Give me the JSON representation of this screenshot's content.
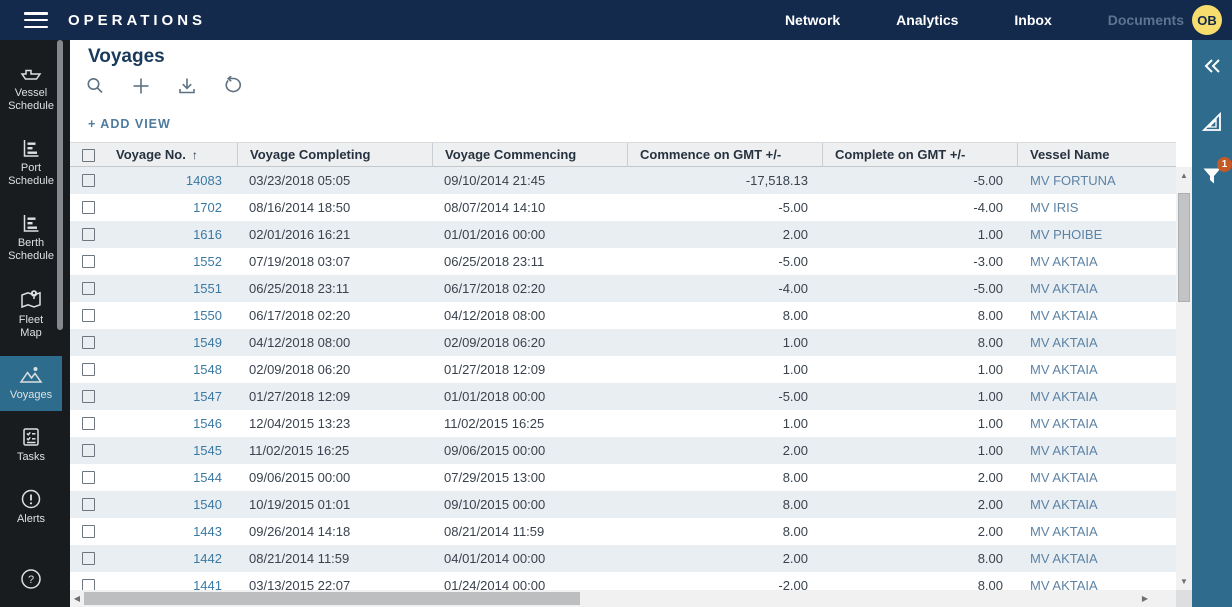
{
  "topbar": {
    "brand": "OPERATIONS",
    "nav_items": [
      {
        "label": "Network",
        "muted": false
      },
      {
        "label": "Analytics",
        "muted": false
      },
      {
        "label": "Inbox",
        "muted": false
      },
      {
        "label": "Documents",
        "muted": true
      }
    ],
    "avatar_initials": "OB"
  },
  "sidebar": {
    "items": [
      {
        "label": "Vessel\nSchedule",
        "icon": "ship-icon",
        "active": false
      },
      {
        "label": "Port\nSchedule",
        "icon": "gantt-icon",
        "active": false
      },
      {
        "label": "Berth\nSchedule",
        "icon": "gantt-icon",
        "active": false
      },
      {
        "label": "Fleet\nMap",
        "icon": "map-pin-icon",
        "active": false
      },
      {
        "label": "Voyages",
        "icon": "route-icon",
        "active": true
      },
      {
        "label": "Tasks",
        "icon": "checklist-icon",
        "active": false
      },
      {
        "label": "Alerts",
        "icon": "alert-icon",
        "active": false
      }
    ]
  },
  "main": {
    "title": "Voyages",
    "add_view_label": "+ ADD VIEW",
    "table": {
      "columns": [
        "Voyage No.",
        "Voyage Completing",
        "Voyage Commencing",
        "Commence on GMT +/-",
        "Complete on GMT +/-",
        "Vessel Name"
      ],
      "sort_column": "Voyage No.",
      "sort_arrow": "↑",
      "rows": [
        {
          "voyage_no": "14083",
          "completing": "03/23/2018 05:05",
          "commencing": "09/10/2014 21:45",
          "commence_gmt": "-17,518.13",
          "complete_gmt": "-5.00",
          "vessel": "MV FORTUNA"
        },
        {
          "voyage_no": "1702",
          "completing": "08/16/2014 18:50",
          "commencing": "08/07/2014 14:10",
          "commence_gmt": "-5.00",
          "complete_gmt": "-4.00",
          "vessel": "MV IRIS"
        },
        {
          "voyage_no": "1616",
          "completing": "02/01/2016 16:21",
          "commencing": "01/01/2016 00:00",
          "commence_gmt": "2.00",
          "complete_gmt": "1.00",
          "vessel": "MV PHOIBE"
        },
        {
          "voyage_no": "1552",
          "completing": "07/19/2018 03:07",
          "commencing": "06/25/2018 23:11",
          "commence_gmt": "-5.00",
          "complete_gmt": "-3.00",
          "vessel": "MV AKTAIA"
        },
        {
          "voyage_no": "1551",
          "completing": "06/25/2018 23:11",
          "commencing": "06/17/2018 02:20",
          "commence_gmt": "-4.00",
          "complete_gmt": "-5.00",
          "vessel": "MV AKTAIA"
        },
        {
          "voyage_no": "1550",
          "completing": "06/17/2018 02:20",
          "commencing": "04/12/2018 08:00",
          "commence_gmt": "8.00",
          "complete_gmt": "8.00",
          "vessel": "MV AKTAIA"
        },
        {
          "voyage_no": "1549",
          "completing": "04/12/2018 08:00",
          "commencing": "02/09/2018 06:20",
          "commence_gmt": "1.00",
          "complete_gmt": "8.00",
          "vessel": "MV AKTAIA"
        },
        {
          "voyage_no": "1548",
          "completing": "02/09/2018 06:20",
          "commencing": "01/27/2018 12:09",
          "commence_gmt": "1.00",
          "complete_gmt": "1.00",
          "vessel": "MV AKTAIA"
        },
        {
          "voyage_no": "1547",
          "completing": "01/27/2018 12:09",
          "commencing": "01/01/2018 00:00",
          "commence_gmt": "-5.00",
          "complete_gmt": "1.00",
          "vessel": "MV AKTAIA"
        },
        {
          "voyage_no": "1546",
          "completing": "12/04/2015 13:23",
          "commencing": "11/02/2015 16:25",
          "commence_gmt": "1.00",
          "complete_gmt": "1.00",
          "vessel": "MV AKTAIA"
        },
        {
          "voyage_no": "1545",
          "completing": "11/02/2015 16:25",
          "commencing": "09/06/2015 00:00",
          "commence_gmt": "2.00",
          "complete_gmt": "1.00",
          "vessel": "MV AKTAIA"
        },
        {
          "voyage_no": "1544",
          "completing": "09/06/2015 00:00",
          "commencing": "07/29/2015 13:00",
          "commence_gmt": "8.00",
          "complete_gmt": "2.00",
          "vessel": "MV AKTAIA"
        },
        {
          "voyage_no": "1540",
          "completing": "10/19/2015 01:01",
          "commencing": "09/10/2015 00:00",
          "commence_gmt": "8.00",
          "complete_gmt": "2.00",
          "vessel": "MV AKTAIA"
        },
        {
          "voyage_no": "1443",
          "completing": "09/26/2014 14:18",
          "commencing": "08/21/2014 11:59",
          "commence_gmt": "8.00",
          "complete_gmt": "2.00",
          "vessel": "MV AKTAIA"
        },
        {
          "voyage_no": "1442",
          "completing": "08/21/2014 11:59",
          "commencing": "04/01/2014 00:00",
          "commence_gmt": "2.00",
          "complete_gmt": "8.00",
          "vessel": "MV AKTAIA"
        },
        {
          "voyage_no": "1441",
          "completing": "03/13/2015 22:07",
          "commencing": "01/24/2014 00:00",
          "commence_gmt": "-2.00",
          "complete_gmt": "8.00",
          "vessel": "MV AKTAIA"
        }
      ]
    }
  },
  "right_rail": {
    "filter_badge": "1"
  },
  "colors": {
    "topbar_bg": "#132A4D",
    "sidebar_bg": "#191C1F",
    "active_item_bg": "#2E6C8D",
    "rail_bg": "#2E6B8C",
    "row_alt_bg": "#E9EEF2",
    "header_bg": "#EDEFF1",
    "voyage_link": "#3A79A3",
    "vessel_link": "#5C83A6",
    "badge_orange": "#C45A27",
    "avatar_yellow": "#F6DD6D",
    "title_navy": "#1A3A5C"
  }
}
